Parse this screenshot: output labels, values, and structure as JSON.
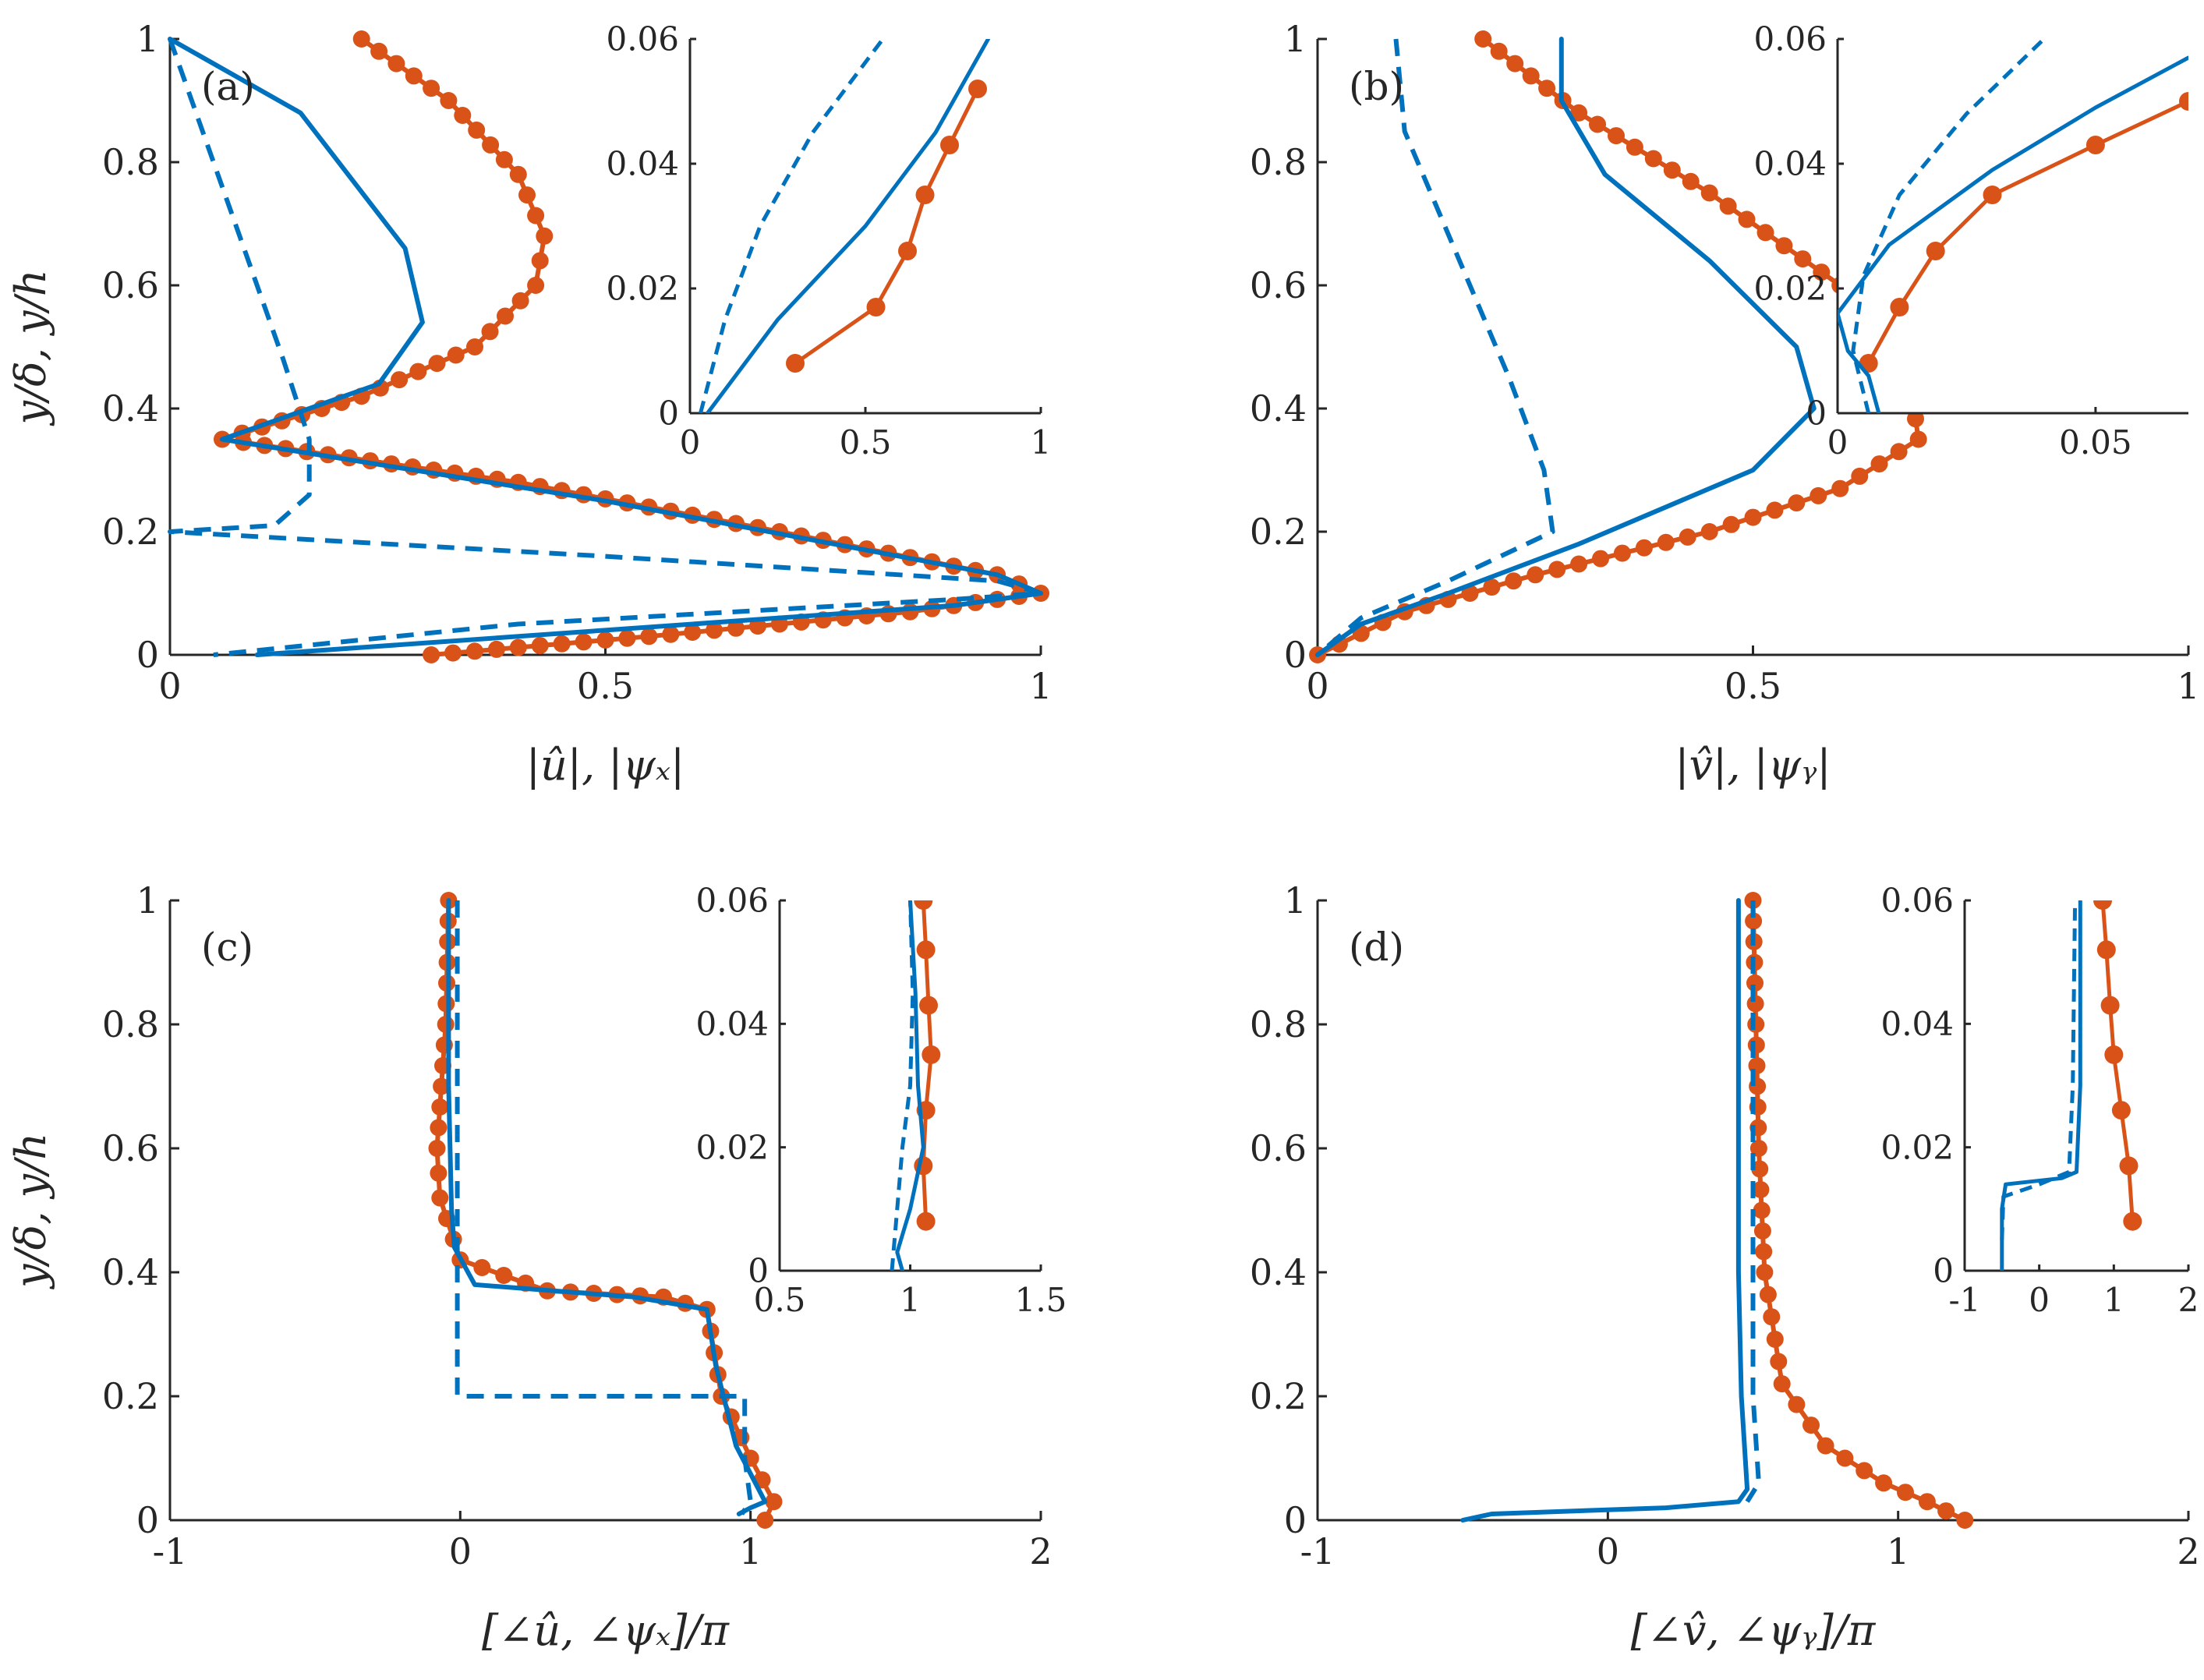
{
  "colors": {
    "blue": "#0072BD",
    "orange": "#D95319",
    "axis": "#262626"
  },
  "chart_data": [
    {
      "type": "line",
      "panel": "a",
      "label": "(a)",
      "xlabel": "|û̂|, |ψx|",
      "xlabel_text": "|û|, |ψₓ|",
      "ylabel": "y/δ, y/h",
      "xlim": [
        0,
        1
      ],
      "ylim": [
        0,
        1
      ],
      "xticks": [
        "0",
        "0.5",
        "1"
      ],
      "yticks": [
        "0",
        "0.2",
        "0.4",
        "0.6",
        "0.8",
        "1"
      ],
      "series": [
        {
          "name": "blue-solid",
          "style": "solid",
          "x": [
            0.0,
            0.15,
            0.27,
            0.29,
            0.24,
            0.12,
            0.06,
            0.5,
            0.95,
            1.0,
            0.9,
            0.5,
            0.1
          ],
          "y": [
            1.0,
            0.88,
            0.66,
            0.54,
            0.44,
            0.38,
            0.35,
            0.25,
            0.13,
            0.1,
            0.08,
            0.04,
            0.0
          ]
        },
        {
          "name": "blue-dashed",
          "style": "dashed",
          "x": [
            0.0,
            0.03,
            0.08,
            0.13,
            0.16,
            0.16,
            0.12,
            0.0,
            0.5,
            0.95,
            1.0,
            0.9,
            0.4,
            0.05
          ],
          "y": [
            1.0,
            0.88,
            0.68,
            0.48,
            0.35,
            0.26,
            0.21,
            0.2,
            0.16,
            0.12,
            0.1,
            0.09,
            0.05,
            0.0
          ]
        },
        {
          "name": "orange-markers",
          "style": "markers-thick",
          "x": [
            0.22,
            0.32,
            0.4,
            0.43,
            0.42,
            0.35,
            0.22,
            0.06,
            0.4,
            0.7,
            0.95,
            1.0,
            0.85,
            0.55,
            0.3
          ],
          "y": [
            1.0,
            0.9,
            0.78,
            0.68,
            0.6,
            0.5,
            0.42,
            0.35,
            0.28,
            0.2,
            0.13,
            0.1,
            0.07,
            0.03,
            0.0
          ]
        }
      ],
      "inset": {
        "xlim": [
          0,
          1
        ],
        "ylim": [
          0,
          0.06
        ],
        "xticks": [
          "0",
          "0.5",
          "1"
        ],
        "yticks": [
          "0",
          "0.02",
          "0.04",
          "0.06"
        ],
        "series": [
          {
            "name": "blue-solid",
            "style": "solid",
            "x": [
              0.05,
              0.25,
              0.5,
              0.7,
              0.85
            ],
            "y": [
              0.0,
              0.015,
              0.03,
              0.045,
              0.06
            ]
          },
          {
            "name": "blue-dashed",
            "style": "dashed",
            "x": [
              0.03,
              0.1,
              0.2,
              0.35,
              0.55
            ],
            "y": [
              0.0,
              0.015,
              0.03,
              0.045,
              0.06
            ]
          },
          {
            "name": "orange-markers",
            "style": "markers",
            "x": [
              0.3,
              0.53,
              0.62,
              0.67,
              0.74,
              0.82
            ],
            "y": [
              0.008,
              0.017,
              0.026,
              0.035,
              0.043,
              0.052
            ]
          }
        ]
      }
    },
    {
      "type": "line",
      "panel": "b",
      "label": "(b)",
      "xlabel_text": "|v̂|, |ψᵧ|",
      "xlim": [
        0,
        1
      ],
      "ylim": [
        0,
        1
      ],
      "xticks": [
        "0",
        "0.5",
        "1"
      ],
      "yticks": [
        "0",
        "0.2",
        "0.4",
        "0.6",
        "0.8",
        "1"
      ],
      "series": [
        {
          "name": "blue-solid",
          "style": "solid",
          "x": [
            0.28,
            0.28,
            0.33,
            0.45,
            0.55,
            0.57,
            0.5,
            0.3,
            0.15,
            0.05,
            0.0
          ],
          "y": [
            1.0,
            0.9,
            0.78,
            0.64,
            0.5,
            0.4,
            0.3,
            0.18,
            0.1,
            0.05,
            0.0
          ]
        },
        {
          "name": "blue-dashed",
          "style": "dashed",
          "x": [
            0.09,
            0.1,
            0.16,
            0.22,
            0.26,
            0.27,
            0.15,
            0.05,
            0.0
          ],
          "y": [
            1.0,
            0.85,
            0.65,
            0.45,
            0.3,
            0.2,
            0.12,
            0.06,
            0.0
          ]
        },
        {
          "name": "orange-markers",
          "style": "markers-thick",
          "x": [
            0.19,
            0.3,
            0.45,
            0.6,
            0.68,
            0.69,
            0.6,
            0.45,
            0.25,
            0.1,
            0.0
          ],
          "y": [
            1.0,
            0.88,
            0.75,
            0.6,
            0.45,
            0.35,
            0.27,
            0.2,
            0.13,
            0.07,
            0.0
          ]
        }
      ],
      "inset": {
        "xlim": [
          0,
          0.068
        ],
        "ylim": [
          0,
          0.06
        ],
        "xticks": [
          "0",
          "0.05"
        ],
        "yticks": [
          "0",
          "0.02",
          "0.04",
          "0.06"
        ],
        "series": [
          {
            "name": "blue-solid",
            "style": "solid",
            "x": [
              0.008,
              0.006,
              0.002,
              0.0,
              0.01,
              0.03,
              0.05,
              0.068
            ],
            "y": [
              0.0,
              0.006,
              0.01,
              0.016,
              0.027,
              0.039,
              0.049,
              0.057
            ]
          },
          {
            "name": "blue-dashed",
            "style": "dashed",
            "x": [
              0.006,
              0.003,
              0.005,
              0.012,
              0.025,
              0.04
            ],
            "y": [
              0.0,
              0.01,
              0.022,
              0.035,
              0.048,
              0.06
            ]
          },
          {
            "name": "orange-markers",
            "style": "markers",
            "x": [
              0.006,
              0.012,
              0.019,
              0.03,
              0.05,
              0.068
            ],
            "y": [
              0.008,
              0.017,
              0.026,
              0.035,
              0.043,
              0.05
            ]
          }
        ]
      }
    },
    {
      "type": "line",
      "panel": "c",
      "label": "(c)",
      "xlabel_text": "[∠û, ∠ψₓ]/π",
      "xlim": [
        -1,
        2
      ],
      "ylim": [
        0,
        1
      ],
      "xticks": [
        "-1",
        "0",
        "1",
        "2"
      ],
      "yticks": [
        "0",
        "0.2",
        "0.4",
        "0.6",
        "0.8",
        "1"
      ],
      "series": [
        {
          "name": "blue-solid",
          "style": "solid",
          "x": [
            -0.04,
            -0.04,
            -0.03,
            -0.02,
            0.05,
            0.6,
            0.85,
            0.88,
            0.95,
            1.05,
            1.0,
            0.96
          ],
          "y": [
            1.0,
            0.7,
            0.5,
            0.44,
            0.38,
            0.36,
            0.34,
            0.25,
            0.12,
            0.03,
            0.02,
            0.01
          ]
        },
        {
          "name": "blue-dashed",
          "style": "dashed",
          "x": [
            -0.01,
            -0.01,
            -0.01,
            -0.01,
            -0.01,
            0.5,
            0.98,
            0.98,
            1.0,
            0.97
          ],
          "y": [
            1.0,
            0.8,
            0.6,
            0.4,
            0.2,
            0.2,
            0.2,
            0.1,
            0.03,
            0.01
          ]
        },
        {
          "name": "orange-markers",
          "style": "markers-thick",
          "x": [
            -0.04,
            -0.05,
            -0.08,
            -0.07,
            0.0,
            0.3,
            0.7,
            0.85,
            0.9,
            1.0,
            1.08,
            1.05
          ],
          "y": [
            1.0,
            0.8,
            0.6,
            0.52,
            0.42,
            0.37,
            0.36,
            0.34,
            0.2,
            0.1,
            0.03,
            0.0
          ]
        }
      ],
      "inset": {
        "xlim": [
          0.5,
          1.5
        ],
        "ylim": [
          0,
          0.06
        ],
        "xticks": [
          "0.5",
          "1",
          "1.5"
        ],
        "yticks": [
          "0",
          "0.02",
          "0.04",
          "0.06"
        ],
        "series": [
          {
            "name": "blue-solid",
            "style": "solid",
            "x": [
              0.97,
              0.95,
              1.0,
              1.05,
              1.03,
              1.02,
              1.0
            ],
            "y": [
              0.0,
              0.003,
              0.01,
              0.02,
              0.03,
              0.045,
              0.06
            ]
          },
          {
            "name": "blue-dashed",
            "style": "dashed",
            "x": [
              0.93,
              0.95,
              0.97,
              1.0,
              1.01,
              1.0
            ],
            "y": [
              0.0,
              0.01,
              0.02,
              0.03,
              0.045,
              0.06
            ]
          },
          {
            "name": "orange-markers",
            "style": "markers",
            "x": [
              1.06,
              1.05,
              1.06,
              1.08,
              1.07,
              1.06,
              1.05
            ],
            "y": [
              0.008,
              0.017,
              0.026,
              0.035,
              0.043,
              0.052,
              0.06
            ]
          }
        ]
      }
    },
    {
      "type": "line",
      "panel": "d",
      "label": "(d)",
      "xlabel_text": "[∠v̂, ∠ψᵧ]/π",
      "xlim": [
        -1,
        2
      ],
      "ylim": [
        0,
        1
      ],
      "xticks": [
        "-1",
        "0",
        "1",
        "2"
      ],
      "yticks": [
        "0",
        "0.2",
        "0.4",
        "0.6",
        "0.8",
        "1"
      ],
      "series": [
        {
          "name": "blue-solid",
          "style": "solid",
          "x": [
            0.45,
            0.45,
            0.45,
            0.45,
            0.46,
            0.48,
            0.45,
            0.2,
            -0.4,
            -0.5
          ],
          "y": [
            1.0,
            0.8,
            0.6,
            0.4,
            0.2,
            0.05,
            0.03,
            0.02,
            0.01,
            0.0
          ]
        },
        {
          "name": "blue-dashed",
          "style": "dashed",
          "x": [
            0.5,
            0.5,
            0.5,
            0.5,
            0.5,
            0.52,
            0.48
          ],
          "y": [
            1.0,
            0.8,
            0.6,
            0.4,
            0.2,
            0.06,
            0.03
          ]
        },
        {
          "name": "orange-markers",
          "style": "markers-thick",
          "x": [
            0.5,
            0.51,
            0.52,
            0.54,
            0.6,
            0.75,
            0.95,
            1.1,
            1.23
          ],
          "y": [
            1.0,
            0.8,
            0.6,
            0.4,
            0.22,
            0.12,
            0.06,
            0.03,
            0.0
          ]
        }
      ],
      "inset": {
        "xlim": [
          -1,
          2
        ],
        "ylim": [
          0,
          0.06
        ],
        "xticks": [
          "-1",
          "0",
          "1",
          "2"
        ],
        "yticks": [
          "0",
          "0.02",
          "0.04",
          "0.06"
        ],
        "series": [
          {
            "name": "blue-solid",
            "style": "solid",
            "x": [
              -0.5,
              -0.5,
              -0.45,
              0.3,
              0.5,
              0.55,
              0.55
            ],
            "y": [
              0.0,
              0.01,
              0.014,
              0.015,
              0.016,
              0.03,
              0.06
            ]
          },
          {
            "name": "blue-dashed",
            "style": "dashed",
            "x": [
              -0.5,
              -0.48,
              0.0,
              0.4,
              0.45,
              0.48
            ],
            "y": [
              0.005,
              0.012,
              0.014,
              0.016,
              0.03,
              0.06
            ]
          },
          {
            "name": "orange-markers",
            "style": "markers",
            "x": [
              1.25,
              1.2,
              1.1,
              1.0,
              0.95,
              0.9,
              0.85
            ],
            "y": [
              0.008,
              0.017,
              0.026,
              0.035,
              0.043,
              0.052,
              0.06
            ]
          }
        ]
      }
    }
  ]
}
